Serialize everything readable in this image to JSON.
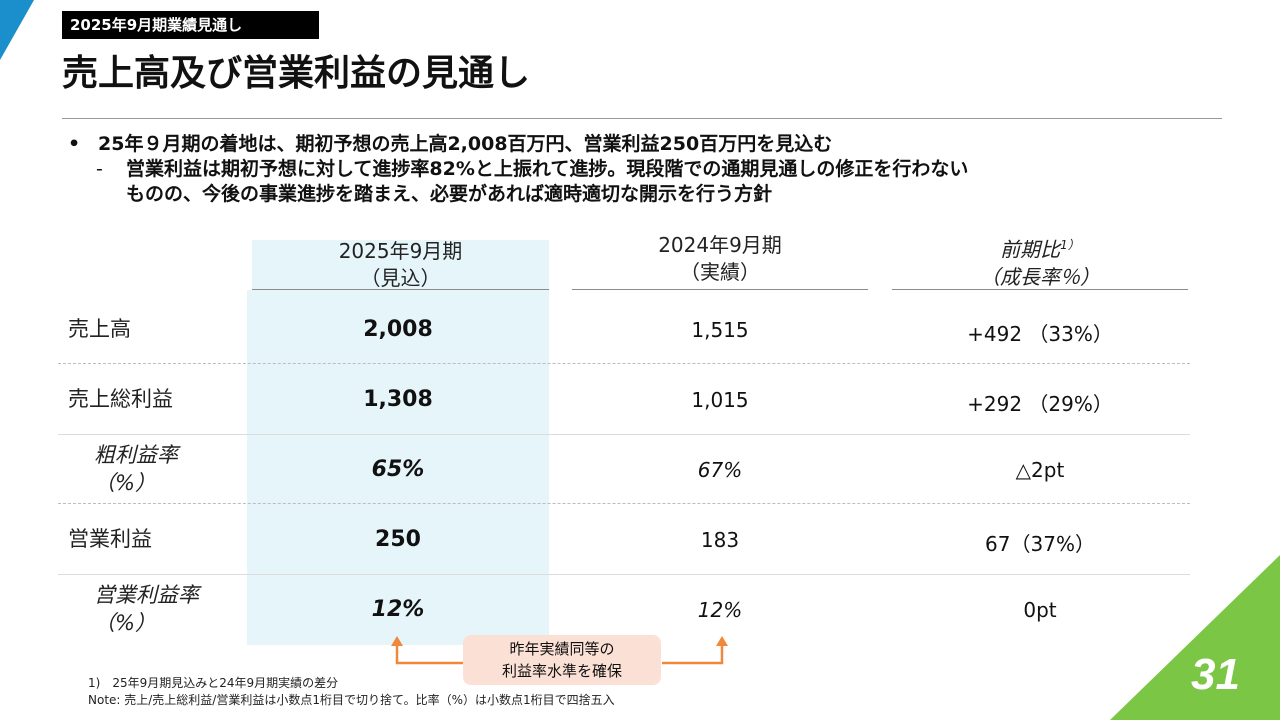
{
  "section_tag": "2025年9月期業績見通し",
  "page_title": "売上高及び営業利益の見通し",
  "bullets": {
    "main": "25年９月期の着地は、期初予想の売上高2,008百万円、営業利益250百万円を見込む",
    "sub_line1": "営業利益は期初予想に対して進捗率82%と上振れて進捗。現段階での通期見通しの修正を行わない",
    "sub_line2": "ものの、今後の事業進捗を踏まえ、必要があれば適時適切な開示を行う方針"
  },
  "table": {
    "headers": [
      {
        "line1": "2025年9月期",
        "line2": "（見込）"
      },
      {
        "line1": "2024年9月期",
        "line2": "（実績）"
      },
      {
        "line1": "前期比",
        "sup": "1）",
        "line2": "（成長率％）"
      }
    ],
    "rows": [
      {
        "label": "売上高",
        "c1": "2,008",
        "c2": "1,515",
        "c3": "+492 （33%）"
      },
      {
        "label": "売上総利益",
        "c1": "1,308",
        "c2": "1,015",
        "c3": "+292 （29%）"
      },
      {
        "label": "粗利益率",
        "label2": "（%）",
        "c1": "65%",
        "c2": "67%",
        "c3": "△2pt"
      },
      {
        "label": "営業利益",
        "c1": "250",
        "c2": "183",
        "c3": "67（37%）"
      },
      {
        "label": "営業利益率",
        "label2": "（%）",
        "c1": "12%",
        "c2": "12%",
        "c3": "0pt"
      }
    ]
  },
  "callout": {
    "line1": "昨年実績同等の",
    "line2": "利益率水準を確保"
  },
  "footnotes": {
    "note1": "1)　25年9月期見込みと24年9月期実績の差分",
    "note2": "Note: 売上/売上総利益/営業利益は小数点1桁目で切り捨て。比率（%）は小数点1桁目で四捨五入"
  },
  "page_number": "31",
  "colors": {
    "accent_blue": "#1a8fcb",
    "accent_green": "#7cc646",
    "highlight": "#e6f5fa",
    "callout_bg": "#fbe0d5",
    "arrow": "#f0883c"
  }
}
